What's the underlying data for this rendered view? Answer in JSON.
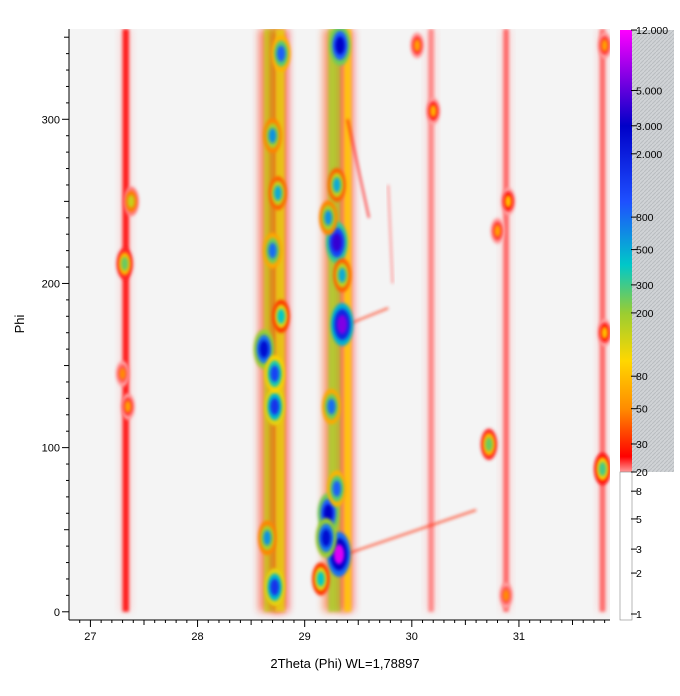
{
  "chart_data": {
    "type": "heatmap",
    "title": "",
    "xlabel": "2Theta (Phi) WL=1,78897",
    "ylabel": "Phi",
    "xlim": [
      26.8,
      31.85
    ],
    "ylim": [
      -5,
      355
    ],
    "x_ticks": [
      27,
      28,
      29,
      30,
      31
    ],
    "y_ticks": [
      0,
      100,
      200,
      300
    ],
    "colorbar": {
      "scale": "log",
      "range": [
        1,
        12000
      ],
      "tick_labels": [
        "12.000",
        "5.000",
        "3.000",
        "2.000",
        "800",
        "500",
        "300",
        "200",
        "80",
        "50",
        "30",
        "20",
        "8",
        "5",
        "3",
        "2",
        "1"
      ],
      "tick_values": [
        12000,
        5000,
        3000,
        2000,
        800,
        500,
        300,
        200,
        80,
        50,
        30,
        20,
        8,
        5,
        3,
        2,
        1
      ],
      "colors": [
        "#ffffff",
        "#ff9a9a",
        "#ff0000",
        "#ff8c00",
        "#ffd700",
        "#9acd32",
        "#00c8c8",
        "#1e50ff",
        "#0000c8",
        "#ff00ff"
      ]
    },
    "background_color": "#f4f4f4",
    "bands": [
      {
        "x": 27.33,
        "width": 0.06,
        "phi_start": 0,
        "phi_end": 355,
        "intensity": 25
      },
      {
        "x": 28.68,
        "width": 0.12,
        "phi_start": 0,
        "phi_end": 355,
        "intensity": 150
      },
      {
        "x": 28.77,
        "width": 0.09,
        "phi_start": 0,
        "phi_end": 355,
        "intensity": 120
      },
      {
        "x": 29.28,
        "width": 0.12,
        "phi_start": 0,
        "phi_end": 355,
        "intensity": 180
      },
      {
        "x": 29.4,
        "width": 0.07,
        "phi_start": 0,
        "phi_end": 355,
        "intensity": 90
      },
      {
        "x": 30.18,
        "width": 0.05,
        "phi_start": 0,
        "phi_end": 355,
        "intensity": 12
      },
      {
        "x": 30.88,
        "width": 0.05,
        "phi_start": 0,
        "phi_end": 355,
        "intensity": 15
      },
      {
        "x": 31.78,
        "width": 0.05,
        "phi_start": 0,
        "phi_end": 355,
        "intensity": 15
      }
    ],
    "peaks": [
      {
        "x": 28.62,
        "phi": 160,
        "intensity": 2500
      },
      {
        "x": 28.72,
        "phi": 125,
        "intensity": 1500
      },
      {
        "x": 28.72,
        "phi": 145,
        "intensity": 1200
      },
      {
        "x": 28.7,
        "phi": 220,
        "intensity": 800
      },
      {
        "x": 28.72,
        "phi": 15,
        "intensity": 1500
      },
      {
        "x": 28.65,
        "phi": 45,
        "intensity": 600
      },
      {
        "x": 28.78,
        "phi": 340,
        "intensity": 900
      },
      {
        "x": 28.7,
        "phi": 290,
        "intensity": 600
      },
      {
        "x": 28.75,
        "phi": 255,
        "intensity": 500
      },
      {
        "x": 28.78,
        "phi": 180,
        "intensity": 400
      },
      {
        "x": 29.32,
        "phi": 35,
        "intensity": 10000
      },
      {
        "x": 29.35,
        "phi": 175,
        "intensity": 6000
      },
      {
        "x": 29.3,
        "phi": 225,
        "intensity": 4000
      },
      {
        "x": 29.22,
        "phi": 60,
        "intensity": 3000
      },
      {
        "x": 29.2,
        "phi": 45,
        "intensity": 2500
      },
      {
        "x": 29.33,
        "phi": 345,
        "intensity": 3000
      },
      {
        "x": 29.25,
        "phi": 125,
        "intensity": 800
      },
      {
        "x": 29.3,
        "phi": 75,
        "intensity": 900
      },
      {
        "x": 29.22,
        "phi": 240,
        "intensity": 600
      },
      {
        "x": 29.35,
        "phi": 205,
        "intensity": 500
      },
      {
        "x": 29.15,
        "phi": 20,
        "intensity": 400
      },
      {
        "x": 29.3,
        "phi": 260,
        "intensity": 500
      },
      {
        "x": 27.38,
        "phi": 250,
        "intensity": 150
      },
      {
        "x": 27.32,
        "phi": 212,
        "intensity": 250
      },
      {
        "x": 27.35,
        "phi": 125,
        "intensity": 60
      },
      {
        "x": 27.3,
        "phi": 145,
        "intensity": 50
      },
      {
        "x": 30.05,
        "phi": 345,
        "intensity": 60
      },
      {
        "x": 30.2,
        "phi": 305,
        "intensity": 70
      },
      {
        "x": 30.72,
        "phi": 102,
        "intensity": 250
      },
      {
        "x": 30.9,
        "phi": 250,
        "intensity": 80
      },
      {
        "x": 30.8,
        "phi": 232,
        "intensity": 60
      },
      {
        "x": 30.88,
        "phi": 10,
        "intensity": 50
      },
      {
        "x": 31.78,
        "phi": 87,
        "intensity": 300
      },
      {
        "x": 31.8,
        "phi": 170,
        "intensity": 80
      },
      {
        "x": 31.8,
        "phi": 345,
        "intensity": 60
      }
    ],
    "streaks": [
      {
        "x1": 29.38,
        "phi1": 35,
        "x2": 30.6,
        "phi2": 62,
        "intensity": 30
      },
      {
        "x1": 29.4,
        "phi1": 175,
        "x2": 29.78,
        "phi2": 185,
        "intensity": 30
      },
      {
        "x1": 29.4,
        "phi1": 300,
        "x2": 29.6,
        "phi2": 240,
        "intensity": 25
      },
      {
        "x1": 29.78,
        "phi1": 260,
        "x2": 29.82,
        "phi2": 200,
        "intensity": 12
      }
    ]
  }
}
